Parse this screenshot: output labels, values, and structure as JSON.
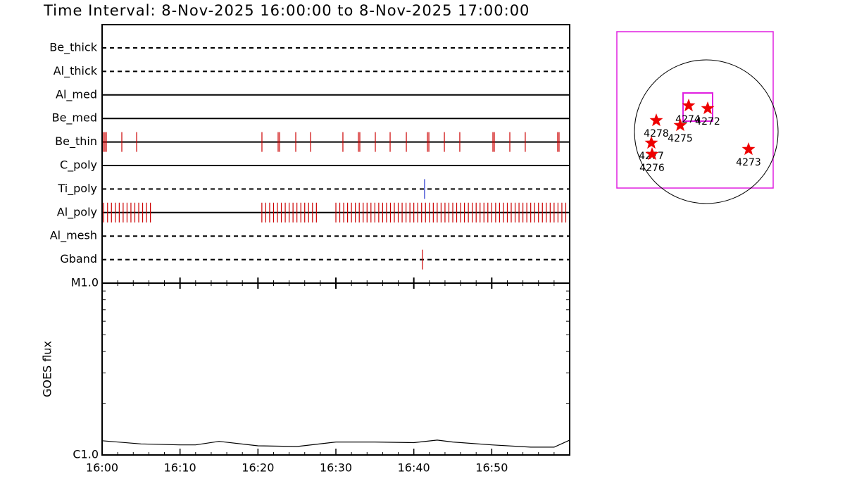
{
  "chart_data": {
    "type": "timeline",
    "title": "Time Interval:  8-Nov-2025 16:00:00 to  8-Nov-2025 17:00:00",
    "xlim": [
      0,
      60
    ],
    "xticks": [
      {
        "value": 0,
        "label": "16:00"
      },
      {
        "value": 10,
        "label": "16:10"
      },
      {
        "value": 20,
        "label": "16:20"
      },
      {
        "value": 30,
        "label": "16:30"
      },
      {
        "value": 40,
        "label": "16:40"
      },
      {
        "value": 50,
        "label": "16:50"
      }
    ],
    "filters": [
      {
        "name": "Be_thick",
        "dashed": true,
        "color": "#cc0000",
        "events": []
      },
      {
        "name": "Al_thick",
        "dashed": true,
        "color": "#cc0000",
        "events": []
      },
      {
        "name": "Al_med",
        "dashed": false,
        "color": "#cc0000",
        "events": []
      },
      {
        "name": "Be_med",
        "dashed": false,
        "color": "#cc0000",
        "events": []
      },
      {
        "name": "Be_thin",
        "dashed": false,
        "color": "#cc0000",
        "events": [
          0.18,
          0.36,
          0.54,
          2.53,
          4.43,
          20.51,
          22.59,
          22.77,
          24.85,
          26.75,
          30.9,
          32.89,
          33.07,
          35.06,
          36.96,
          39.04,
          41.75,
          41.93,
          43.92,
          45.9,
          50.15,
          50.33,
          52.32,
          54.3,
          58.46,
          58.64
        ]
      },
      {
        "name": "C_poly",
        "dashed": false,
        "color": "#cc0000",
        "events": []
      },
      {
        "name": "Ti_poly",
        "dashed": true,
        "color": "#2233cc",
        "events": [
          41.38
        ]
      },
      {
        "name": "Al_poly",
        "dashed": false,
        "color": "#cc0000",
        "events": [
          0.2,
          0.7,
          1.2,
          1.7,
          2.2,
          2.7,
          3.2,
          3.7,
          4.2,
          4.7,
          5.2,
          5.7,
          6.2,
          20.5,
          21.0,
          21.5,
          22.0,
          22.5,
          23.0,
          23.5,
          24.0,
          24.5,
          25.0,
          25.5,
          26.0,
          26.5,
          27.0,
          27.5,
          30.0,
          30.5,
          31.0,
          31.5,
          32.0,
          32.5,
          33.0,
          33.5,
          34.0,
          34.5,
          35.0,
          35.5,
          36.0,
          36.5,
          37.0,
          37.5,
          38.0,
          38.5,
          39.0,
          39.5,
          40.0,
          40.5,
          41.0,
          41.5,
          42.0,
          42.5,
          43.0,
          43.5,
          44.0,
          44.5,
          45.0,
          45.5,
          46.0,
          46.5,
          47.0,
          47.5,
          48.0,
          48.5,
          49.0,
          49.5,
          50.0,
          50.5,
          51.0,
          51.5,
          52.0,
          52.5,
          53.0,
          53.5,
          54.0,
          54.5,
          55.0,
          55.5,
          56.0,
          56.5,
          57.0,
          57.5,
          58.0,
          58.5,
          59.0,
          59.5
        ]
      },
      {
        "name": "Al_mesh",
        "dashed": true,
        "color": "#cc0000",
        "events": []
      },
      {
        "name": "Gband",
        "dashed": true,
        "color": "#cc0000",
        "events": [
          41.11
        ]
      }
    ],
    "goes": {
      "ylabel": "GOES flux",
      "log": true,
      "ylim": [
        1e-06,
        1e-05
      ],
      "yticks": [
        {
          "value": 1e-06,
          "label": "C1.0"
        },
        {
          "value": 1e-05,
          "label": "M1.0"
        }
      ],
      "x": [
        0,
        5,
        10,
        12,
        15,
        20,
        25,
        30,
        35,
        40,
        43,
        45,
        50,
        55,
        58,
        60
      ],
      "values": [
        1.21e-06,
        1.16e-06,
        1.145e-06,
        1.145e-06,
        1.2e-06,
        1.13e-06,
        1.12e-06,
        1.19e-06,
        1.19e-06,
        1.18e-06,
        1.22e-06,
        1.19e-06,
        1.145e-06,
        1.11e-06,
        1.11e-06,
        1.22e-06
      ]
    },
    "regions": [
      "4274",
      "4272",
      "4278",
      "4275",
      "4277",
      "4276",
      "4273"
    ]
  }
}
